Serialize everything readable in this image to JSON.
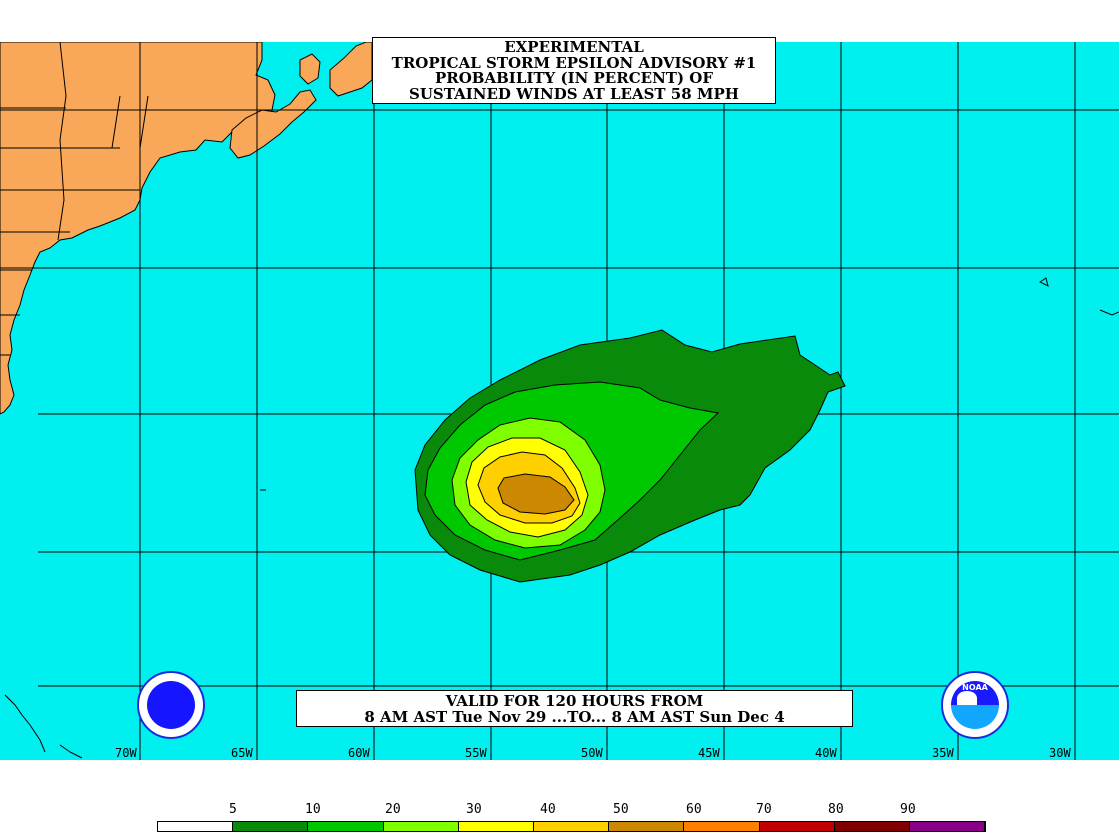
{
  "title": {
    "line1": "EXPERIMENTAL",
    "line2": "TROPICAL STORM EPSILON ADVISORY #1",
    "line3": "PROBABILITY (IN PERCENT) OF",
    "line4": "SUSTAINED WINDS AT LEAST 58 MPH"
  },
  "valid": {
    "line1": "VALID FOR 120 HOURS FROM",
    "line2": "8 AM AST Tue Nov 29 ...TO... 8 AM AST Sun Dec 4"
  },
  "longitudes": [
    "70W",
    "65W",
    "60W",
    "55W",
    "50W",
    "45W",
    "40W",
    "35W",
    "30W"
  ],
  "legend": {
    "labels": [
      "5",
      "10",
      "20",
      "30",
      "40",
      "50",
      "60",
      "70",
      "80",
      "90"
    ],
    "colors": [
      "#ffffff",
      "#0a8a0a",
      "#00c800",
      "#80ff00",
      "#ffff00",
      "#ffd000",
      "#cc8800",
      "#ff8000",
      "#c00000",
      "#800000",
      "#880088"
    ]
  },
  "colors": {
    "ocean": "#00f0f0",
    "land": "#f8a858",
    "dark_green": "#0a8a0a",
    "green": "#00c800",
    "light_green": "#80ff00",
    "yellow": "#ffff00",
    "gold": "#ffd000",
    "brown": "#cc8800"
  },
  "logos": {
    "nws": "nws-logo-icon",
    "noaa": "noaa-logo-icon",
    "noaa_text": "NOAA"
  }
}
